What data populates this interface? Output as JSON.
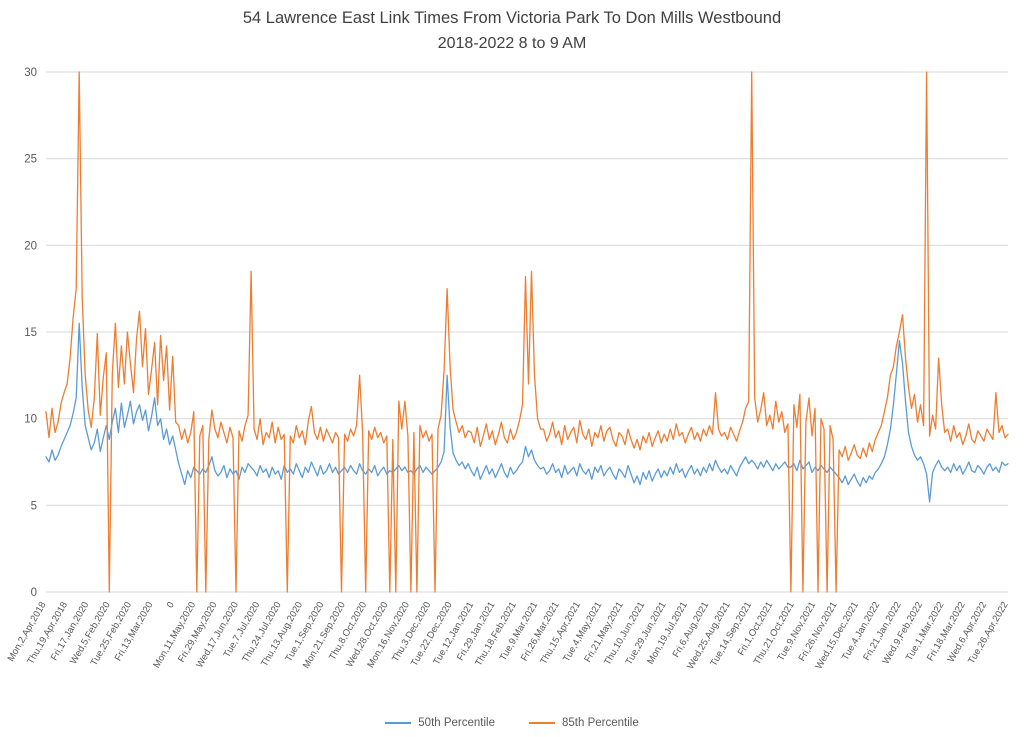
{
  "chart": {
    "title_line1": "54 Lawrence East Link Times From Victoria Park To Don Mills Westbound",
    "title_line2": "2018-2022 8 to 9 AM"
  },
  "chart_data": {
    "type": "line",
    "title": "54 Lawrence East Link Times From Victoria Park To Don Mills Westbound 2018-2022 8 to 9 AM",
    "xlabel": "",
    "ylabel": "",
    "ylim": [
      0,
      30
    ],
    "y_ticks": [
      0,
      5,
      10,
      15,
      20,
      25,
      30
    ],
    "grid": true,
    "legend_position": "bottom",
    "categories": [
      "Mon,2,Apr,2018",
      "Thu,19,Apr,2018",
      "Fri,17,Jan,2020",
      "Wed,5,Feb,2020",
      "Tue,25,Feb,2020",
      "Fri,13,Mar,2020",
      "0",
      "Mon,11,May,2020",
      "Fri,29,May,2020",
      "Wed,17,Jun,2020",
      "Tue,7,Jul,2020",
      "Thu,24,Jul,2020",
      "Thu,13,Aug,2020",
      "Tue,1,Sep,2020",
      "Mon,21,Sep,2020",
      "Thu,8,Oct,2020",
      "Wed,28,Oct,2020",
      "Mon,16,Nov,2020",
      "Thu,3,Dec,2020",
      "Tue,22,Dec,2020",
      "Tue,12,Jan,2021",
      "Fri,29,Jan,2021",
      "Thu,18,Feb,2021",
      "Tue,9,Mar,2021",
      "Fri,26,Mar,2021",
      "Thu,15,Apr,2021",
      "Tue,4,May,2021",
      "Fri,21,May,2021",
      "Thu,10,Jun,2021",
      "Tue,29,Jun,2021",
      "Mon,19,Jul,2021",
      "Fri,6,Aug,2021",
      "Wed,25,Aug,2021",
      "Tue,14,Sep,2021",
      "Fri,1,Oct,2021",
      "Thu,21,Oct,2021",
      "Tue,9,Nov,2021",
      "Fri,26,Nov,2021",
      "Wed,15,Dec,2021",
      "Tue,4,Jan,2022",
      "Fri,21,Jan,2022",
      "Wed,9,Feb,2022",
      "Tue,1,Mar,2022",
      "Fri,18,Mar,2022",
      "Wed,6,Apr,2022",
      "Tue,26,Apr,2022"
    ],
    "series": [
      {
        "name": "50th Percentile",
        "color": "#5B9BD5",
        "values": [
          7.8,
          7.5,
          8.2,
          7.6,
          7.9,
          8.4,
          8.8,
          9.2,
          9.6,
          10.3,
          11.2,
          15.5,
          11.8,
          9.6,
          8.9,
          8.2,
          8.6,
          9.4,
          8.1,
          8.9,
          9.6,
          8.8,
          9.8,
          10.6,
          9.2,
          10.9,
          9.5,
          10.2,
          11.0,
          9.7,
          10.4,
          10.8,
          9.9,
          10.5,
          9.3,
          10.1,
          11.2,
          9.6,
          10.0,
          8.8,
          9.4,
          8.5,
          9.0,
          8.2,
          7.4,
          6.8,
          6.2,
          7.0,
          6.6,
          7.2,
          7.0,
          6.8,
          7.1,
          6.9,
          7.3,
          7.8,
          7.0,
          6.7,
          6.9,
          7.3,
          6.6,
          7.1,
          6.8,
          7.0,
          6.5,
          7.2,
          6.9,
          7.4,
          7.2,
          7.0,
          6.7,
          7.3,
          6.9,
          7.1,
          6.6,
          7.2,
          6.8,
          7.0,
          6.5,
          7.3,
          6.9,
          7.1,
          6.8,
          7.4,
          7.0,
          6.6,
          7.2,
          6.9,
          7.5,
          7.1,
          6.7,
          7.3,
          6.8,
          7.0,
          7.4,
          6.9,
          7.2,
          6.8,
          7.0,
          7.2,
          6.9,
          7.3,
          7.0,
          6.8,
          7.4,
          7.0,
          6.8,
          7.1,
          6.9,
          7.3,
          6.7,
          7.0,
          7.2,
          6.8,
          7.0,
          6.9,
          7.1,
          7.3,
          7.0,
          7.2,
          6.9,
          7.0,
          6.8,
          7.1,
          7.3,
          6.9,
          7.2,
          7.0,
          6.8,
          7.0,
          7.2,
          7.5,
          8.1,
          12.5,
          9.5,
          8.0,
          7.6,
          7.3,
          7.5,
          7.1,
          7.4,
          7.0,
          6.7,
          7.2,
          6.5,
          6.9,
          7.3,
          6.8,
          7.1,
          6.6,
          7.0,
          7.4,
          6.9,
          6.6,
          7.2,
          6.8,
          7.0,
          7.3,
          7.5,
          8.4,
          7.8,
          8.2,
          7.6,
          7.3,
          7.1,
          7.2,
          6.8,
          7.0,
          7.4,
          6.9,
          7.1,
          6.6,
          7.3,
          6.8,
          7.0,
          7.2,
          6.7,
          7.4,
          7.0,
          6.8,
          7.1,
          6.5,
          7.2,
          6.9,
          7.3,
          6.7,
          7.0,
          7.2,
          6.8,
          6.5,
          7.1,
          6.9,
          6.6,
          7.3,
          6.8,
          6.3,
          6.7,
          6.2,
          6.9,
          6.5,
          7.0,
          6.4,
          6.8,
          7.1,
          6.6,
          7.0,
          6.7,
          7.2,
          6.8,
          7.4,
          6.9,
          7.1,
          6.6,
          7.0,
          7.3,
          6.8,
          7.1,
          6.7,
          7.2,
          6.9,
          7.4,
          7.0,
          7.6,
          7.2,
          6.9,
          7.1,
          6.8,
          7.3,
          7.0,
          6.7,
          7.2,
          7.5,
          7.8,
          7.4,
          7.6,
          7.4,
          7.1,
          7.5,
          7.2,
          7.6,
          7.3,
          7.0,
          7.4,
          7.1,
          7.3,
          7.5,
          7.2,
          7.2,
          7.4,
          7.0,
          7.6,
          7.1,
          7.3,
          7.5,
          6.9,
          7.2,
          7.0,
          7.3,
          7.1,
          6.9,
          7.2,
          7.0,
          6.8,
          6.6,
          6.3,
          6.7,
          6.2,
          6.5,
          6.8,
          6.4,
          6.1,
          6.6,
          6.3,
          6.7,
          6.5,
          6.9,
          7.1,
          7.4,
          7.8,
          8.5,
          9.4,
          10.8,
          12.6,
          14.5,
          13.2,
          11.0,
          9.2,
          8.4,
          7.9,
          7.6,
          7.8,
          7.4,
          6.8,
          5.2,
          6.9,
          7.3,
          7.6,
          7.2,
          7.0,
          7.2,
          6.9,
          7.4,
          7.0,
          7.3,
          6.8,
          7.1,
          7.5,
          7.0,
          6.9,
          7.3,
          7.1,
          6.8,
          7.2,
          7.4,
          7.0,
          7.2,
          6.9,
          7.5,
          7.3,
          7.4
        ]
      },
      {
        "name": "85th Percentile",
        "color": "#ED7D31",
        "values": [
          10.4,
          8.9,
          10.6,
          9.2,
          9.8,
          10.9,
          11.5,
          12.0,
          13.5,
          15.8,
          17.5,
          30,
          17.0,
          12.5,
          10.5,
          9.5,
          11.2,
          14.9,
          10.2,
          12.4,
          13.8,
          0,
          12.6,
          15.5,
          11.8,
          14.2,
          12.0,
          15.0,
          13.2,
          11.5,
          14.6,
          16.2,
          13.0,
          15.2,
          11.4,
          12.8,
          14.4,
          10.8,
          14.8,
          12.2,
          14.2,
          10.5,
          13.6,
          9.8,
          9.6,
          8.8,
          9.4,
          8.6,
          9.2,
          10.4,
          0,
          9.0,
          9.6,
          0,
          8.8,
          10.5,
          9.4,
          8.9,
          9.8,
          9.2,
          8.6,
          9.5,
          8.9,
          0,
          9.3,
          8.7,
          9.6,
          10.2,
          18.5,
          9.4,
          8.8,
          10.0,
          8.5,
          9.2,
          8.9,
          9.8,
          8.6,
          9.5,
          8.8,
          9.1,
          0,
          9.0,
          8.6,
          9.6,
          8.9,
          9.3,
          8.5,
          9.9,
          10.7,
          9.2,
          8.8,
          9.5,
          8.7,
          9.4,
          9.0,
          8.6,
          9.2,
          8.9,
          0,
          9.1,
          8.7,
          9.4,
          9.0,
          9.6,
          12.5,
          9.2,
          0,
          9.3,
          8.8,
          9.5,
          8.9,
          9.2,
          8.6,
          9.0,
          0,
          8.8,
          0,
          11.0,
          9.4,
          11.0,
          9.0,
          0,
          9.2,
          0,
          9.6,
          8.9,
          9.3,
          8.7,
          9.1,
          0,
          9.4,
          10.2,
          12.8,
          17.5,
          13.0,
          10.5,
          9.8,
          9.2,
          9.6,
          8.9,
          9.3,
          9.2,
          8.6,
          9.5,
          8.4,
          9.0,
          9.7,
          8.8,
          9.3,
          8.5,
          9.1,
          9.8,
          8.9,
          8.6,
          9.4,
          8.8,
          9.2,
          9.9,
          10.8,
          18.2,
          12.0,
          18.5,
          12.5,
          10.0,
          9.4,
          9.4,
          8.7,
          9.1,
          9.8,
          8.9,
          9.3,
          8.5,
          9.6,
          8.8,
          9.2,
          9.5,
          8.6,
          9.9,
          9.1,
          8.8,
          9.4,
          8.4,
          9.2,
          8.9,
          9.6,
          8.7,
          9.3,
          9.5,
          8.8,
          8.4,
          9.2,
          9.0,
          8.5,
          9.4,
          8.8,
          8.3,
          8.8,
          8.2,
          9.0,
          8.6,
          9.2,
          8.4,
          8.9,
          9.3,
          8.6,
          9.1,
          8.7,
          9.4,
          8.8,
          9.7,
          9.0,
          9.2,
          8.6,
          9.1,
          9.5,
          8.8,
          9.2,
          8.7,
          9.4,
          9.0,
          9.6,
          9.1,
          11.5,
          9.4,
          9.0,
          9.2,
          8.8,
          9.5,
          9.1,
          8.7,
          9.3,
          9.8,
          10.6,
          11.0,
          30,
          11.2,
          9.8,
          10.5,
          11.5,
          9.6,
          10.2,
          9.4,
          11.0,
          9.8,
          10.4,
          9.2,
          9.7,
          0,
          10.8,
          9.5,
          11.4,
          0,
          9.8,
          11.2,
          9.0,
          10.6,
          0,
          10.0,
          9.4,
          0,
          9.6,
          8.8,
          0,
          8.2,
          7.8,
          8.4,
          7.6,
          8.0,
          8.5,
          7.9,
          7.7,
          8.3,
          7.8,
          8.6,
          8.1,
          8.8,
          9.2,
          9.6,
          10.4,
          11.2,
          12.5,
          13.0,
          14.2,
          15.0,
          16.0,
          13.5,
          11.8,
          10.6,
          11.4,
          9.8,
          10.8,
          9.6,
          30,
          9.0,
          10.2,
          9.4,
          13.5,
          10.8,
          9.2,
          9.4,
          8.7,
          9.6,
          8.9,
          9.2,
          8.5,
          9.0,
          9.7,
          8.8,
          8.6,
          9.3,
          9.0,
          8.7,
          9.4,
          9.1,
          8.8,
          11.5,
          9.2,
          9.6,
          8.9,
          9.1
        ]
      }
    ]
  }
}
